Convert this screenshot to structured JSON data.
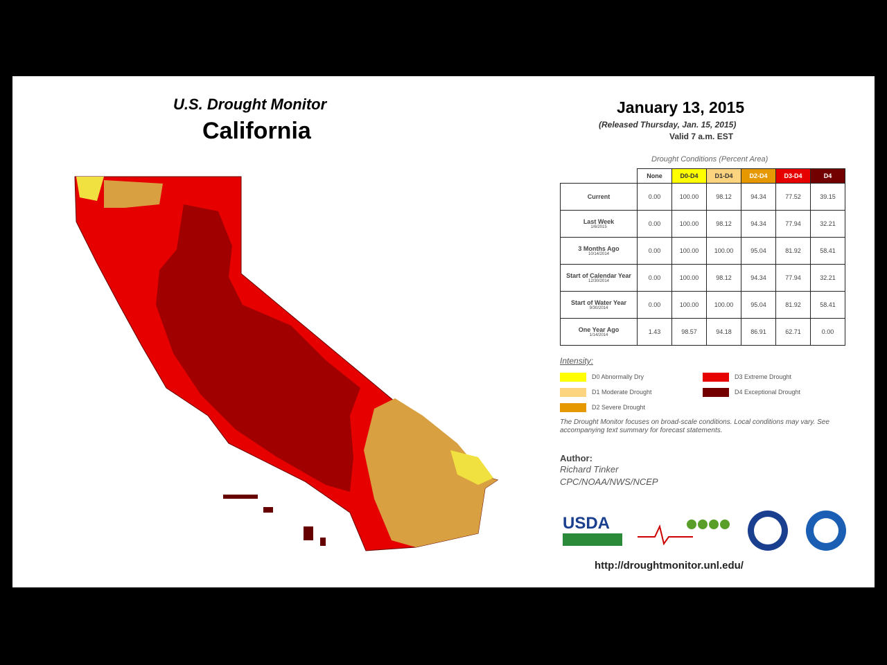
{
  "header": {
    "title": "U.S. Drought Monitor",
    "region": "California",
    "date": "January 13, 2015",
    "released": "(Released Thursday, Jan. 15, 2015)",
    "valid": "Valid 7 a.m. EST"
  },
  "table": {
    "caption": "Drought Conditions (Percent Area)",
    "columns": [
      "None",
      "D0-D4",
      "D1-D4",
      "D2-D4",
      "D3-D4",
      "D4"
    ],
    "rows": [
      {
        "label": "Current",
        "sub": "",
        "cells": [
          "0.00",
          "100.00",
          "98.12",
          "94.34",
          "77.52",
          "39.15"
        ]
      },
      {
        "label": "Last Week",
        "sub": "1/6/2015",
        "cells": [
          "0.00",
          "100.00",
          "98.12",
          "94.34",
          "77.94",
          "32.21"
        ]
      },
      {
        "label": "3 Months Ago",
        "sub": "10/14/2014",
        "cells": [
          "0.00",
          "100.00",
          "100.00",
          "95.04",
          "81.92",
          "58.41"
        ]
      },
      {
        "label": "Start of Calendar Year",
        "sub": "12/30/2014",
        "cells": [
          "0.00",
          "100.00",
          "98.12",
          "94.34",
          "77.94",
          "32.21"
        ]
      },
      {
        "label": "Start of Water Year",
        "sub": "9/30/2014",
        "cells": [
          "0.00",
          "100.00",
          "100.00",
          "95.04",
          "81.92",
          "58.41"
        ]
      },
      {
        "label": "One Year Ago",
        "sub": "1/14/2014",
        "cells": [
          "1.43",
          "98.57",
          "94.18",
          "86.91",
          "62.71",
          "0.00"
        ]
      }
    ]
  },
  "legend": {
    "title": "Intensity:",
    "items": [
      {
        "label": "D0 Abnormally Dry",
        "color": "#ffff00"
      },
      {
        "label": "D1 Moderate Drought",
        "color": "#fcd37f"
      },
      {
        "label": "D2 Severe Drought",
        "color": "#e69800"
      },
      {
        "label": "D3 Extreme Drought",
        "color": "#e60000"
      },
      {
        "label": "D4 Exceptional Drought",
        "color": "#730000"
      }
    ]
  },
  "note": "The Drought Monitor focuses on broad-scale conditions. Local conditions may vary. See accompanying text summary for forecast statements.",
  "author": {
    "heading": "Author:",
    "name": "Richard Tinker",
    "org": "CPC/NOAA/NWS/NCEP"
  },
  "logos": {
    "usda": "USDA"
  },
  "url": "http://droughtmonitor.unl.edu/"
}
